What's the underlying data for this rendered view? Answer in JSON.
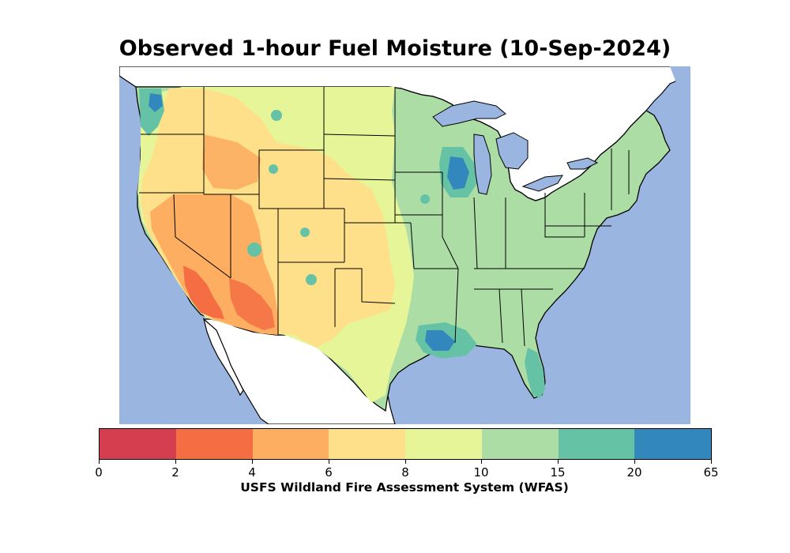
{
  "title": "Observed 1-hour Fuel Moisture (10-Sep-2024)",
  "map": {
    "region": "Contiguous United States",
    "water_color": "#9ab6e0",
    "land_outside_color": "#ffffff",
    "border_color": "#000000"
  },
  "colorbar": {
    "caption": "USFS Wildland Fire Assessment System (WFAS)",
    "ticks": [
      "0",
      "2",
      "4",
      "6",
      "8",
      "10",
      "15",
      "20",
      "65"
    ],
    "bins": [
      {
        "range": "0-2",
        "color": "#d53e4f"
      },
      {
        "range": "2-4",
        "color": "#f46d43"
      },
      {
        "range": "4-6",
        "color": "#fdae61"
      },
      {
        "range": "6-8",
        "color": "#fee08b"
      },
      {
        "range": "8-10",
        "color": "#e6f598"
      },
      {
        "range": "10-15",
        "color": "#abdda4"
      },
      {
        "range": "15-20",
        "color": "#66c2a5"
      },
      {
        "range": "20-65",
        "color": "#3288bd"
      }
    ]
  }
}
